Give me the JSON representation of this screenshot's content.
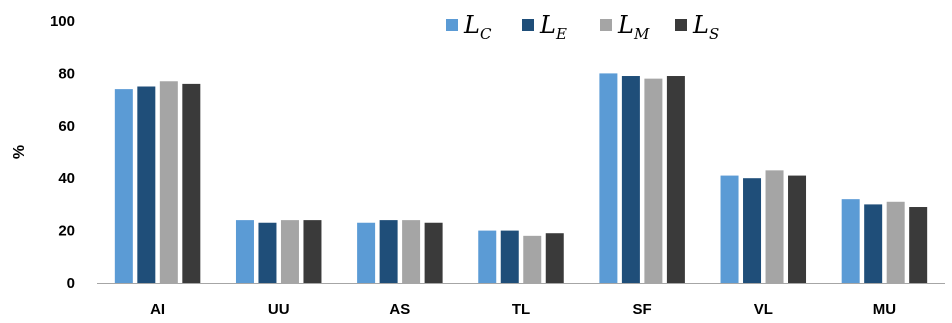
{
  "chart_data": {
    "type": "bar",
    "categories": [
      "AI",
      "UU",
      "AS",
      "TL",
      "SF",
      "VL",
      "MU"
    ],
    "series": [
      {
        "name": "L_C",
        "values": [
          74,
          24,
          23,
          20,
          80,
          41,
          32
        ]
      },
      {
        "name": "L_E",
        "values": [
          75,
          23,
          24,
          20,
          79,
          40,
          30
        ]
      },
      {
        "name": "L_M",
        "values": [
          77,
          24,
          24,
          18,
          78,
          43,
          31
        ]
      },
      {
        "name": "L_S",
        "values": [
          76,
          24,
          23,
          19,
          79,
          41,
          29
        ]
      }
    ],
    "legend_labels": [
      {
        "base": "L",
        "sub": "C"
      },
      {
        "base": "L",
        "sub": "E"
      },
      {
        "base": "L",
        "sub": "M"
      },
      {
        "base": "L",
        "sub": "S"
      }
    ],
    "colors": [
      "#5b9bd5",
      "#1f4e79",
      "#a5a5a5",
      "#3a3a3a"
    ],
    "ylabel": "%",
    "ylim": [
      0,
      100
    ],
    "yticks": [
      0,
      20,
      40,
      60,
      80,
      100
    ],
    "grid": false,
    "legend_position": "top-right"
  }
}
